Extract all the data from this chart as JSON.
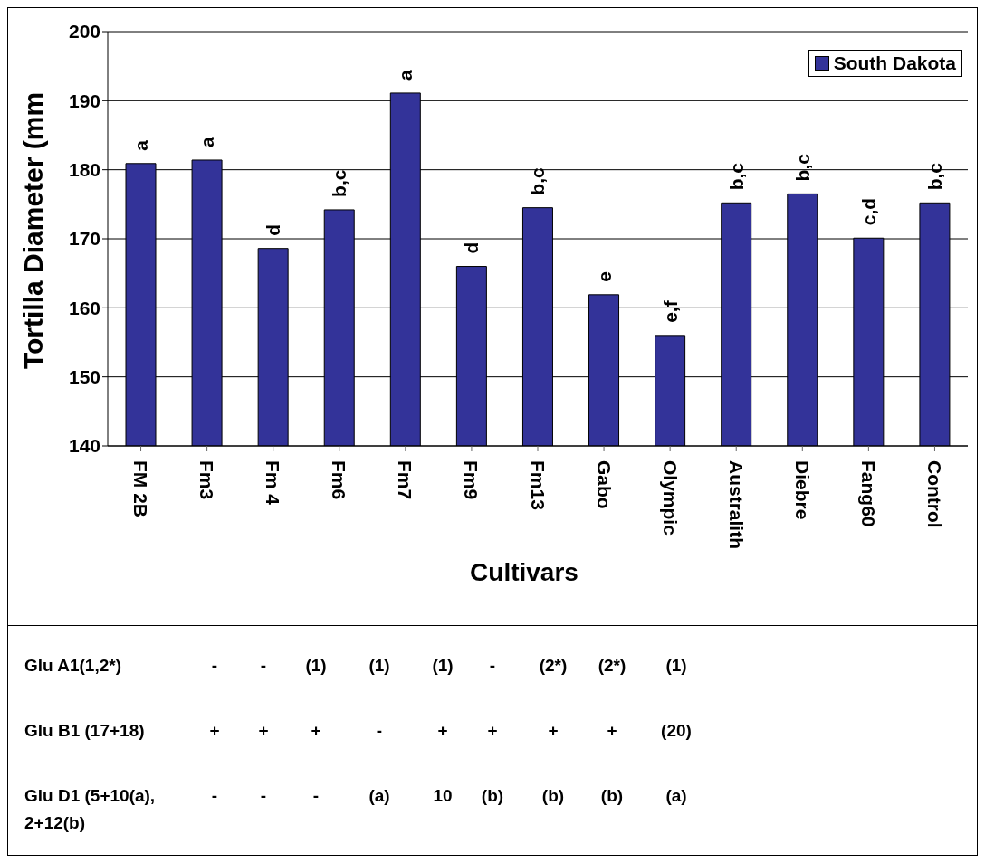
{
  "chart_data": {
    "type": "bar",
    "ylabel": "Tortilla Diameter (mm",
    "xlabel": "Cultivars",
    "categories": [
      "FM 2B",
      "Fm3",
      "Fm 4",
      "Fm6",
      "Fm7",
      "Fm9",
      "Fm13",
      "Gabo",
      "Olympic",
      "Australith",
      "Diebre",
      "Fang60",
      "Control"
    ],
    "series": [
      {
        "name": "South Dakota",
        "color": "#333399",
        "values": [
          180.9,
          181.4,
          168.6,
          174.2,
          191.1,
          166.0,
          174.5,
          161.9,
          156.0,
          175.2,
          176.5,
          170.1,
          175.2
        ],
        "value_labels": [
          "a",
          "a",
          "d",
          "b,c",
          "a",
          "d",
          "b,c",
          "e",
          "e,f",
          "b,c",
          "b,c",
          "c,d",
          "b,c"
        ]
      }
    ],
    "ylim": [
      140,
      200
    ],
    "yticks": [
      140,
      150,
      160,
      170,
      180,
      190,
      200
    ],
    "grid": "y",
    "legend": "top right",
    "annotations": [
      "Glu A1(1,2*)\t-\t-\t(1)\t(1)\t(1)\t-\t(2*)\t(2*)\t(1)",
      "Glu B1 (17+18)\t+\t+\t+\t-\t+\t+\t+\t+\t(20)",
      "Glu D1 (5+10(a), 2+12(b)\t-\t-\t-\t(a)\t10\t(b)\t(b)\t(b)\t(a)"
    ]
  }
}
